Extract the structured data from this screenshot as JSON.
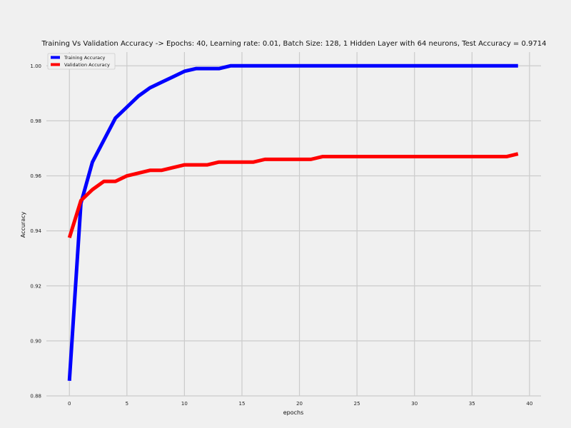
{
  "chart_data": {
    "type": "line",
    "title": "Training Vs Validation Accuracy -> Epochs: 40, Learning rate: 0.01, Batch Size: 128, 1 Hidden Layer with 64 neurons, Test Accuracy = 0.9714",
    "xlabel": "epochs",
    "ylabel": "Accuracy",
    "xlim": [
      -2,
      41
    ],
    "ylim": [
      0.88,
      1.005
    ],
    "xticks": [
      0,
      5,
      10,
      15,
      20,
      25,
      30,
      35,
      40
    ],
    "yticks": [
      0.88,
      0.9,
      0.92,
      0.94,
      0.96,
      0.98,
      1.0
    ],
    "xtick_labels": [
      "0",
      "5",
      "10",
      "15",
      "20",
      "25",
      "30",
      "35",
      "40"
    ],
    "ytick_labels": [
      "0.88",
      "0.90",
      "0.92",
      "0.94",
      "0.96",
      "0.98",
      "1.00"
    ],
    "grid": true,
    "legend_position": "top-left",
    "x": [
      0,
      1,
      2,
      3,
      4,
      5,
      6,
      7,
      8,
      9,
      10,
      11,
      12,
      13,
      14,
      15,
      16,
      17,
      18,
      19,
      20,
      21,
      22,
      23,
      24,
      25,
      26,
      27,
      28,
      29,
      30,
      31,
      32,
      33,
      34,
      35,
      36,
      37,
      38,
      39
    ],
    "series": [
      {
        "name": "Training Accuracy",
        "color": "#0000ff",
        "values": [
          0.8855,
          0.95,
          0.965,
          0.973,
          0.981,
          0.985,
          0.989,
          0.992,
          0.994,
          0.996,
          0.998,
          0.999,
          0.999,
          0.999,
          1.0,
          1.0,
          1.0,
          1.0,
          1.0,
          1.0,
          1.0,
          1.0,
          1.0,
          1.0,
          1.0,
          1.0,
          1.0,
          1.0,
          1.0,
          1.0,
          1.0,
          1.0,
          1.0,
          1.0,
          1.0,
          1.0,
          1.0,
          1.0,
          1.0,
          1.0
        ]
      },
      {
        "name": "Validation Accuracy",
        "color": "#ff0000",
        "values": [
          0.9375,
          0.951,
          0.955,
          0.958,
          0.958,
          0.96,
          0.961,
          0.962,
          0.962,
          0.963,
          0.964,
          0.964,
          0.964,
          0.965,
          0.965,
          0.965,
          0.965,
          0.966,
          0.966,
          0.966,
          0.966,
          0.966,
          0.967,
          0.967,
          0.967,
          0.967,
          0.967,
          0.967,
          0.967,
          0.967,
          0.967,
          0.967,
          0.967,
          0.967,
          0.967,
          0.967,
          0.967,
          0.967,
          0.967,
          0.968
        ]
      }
    ]
  }
}
